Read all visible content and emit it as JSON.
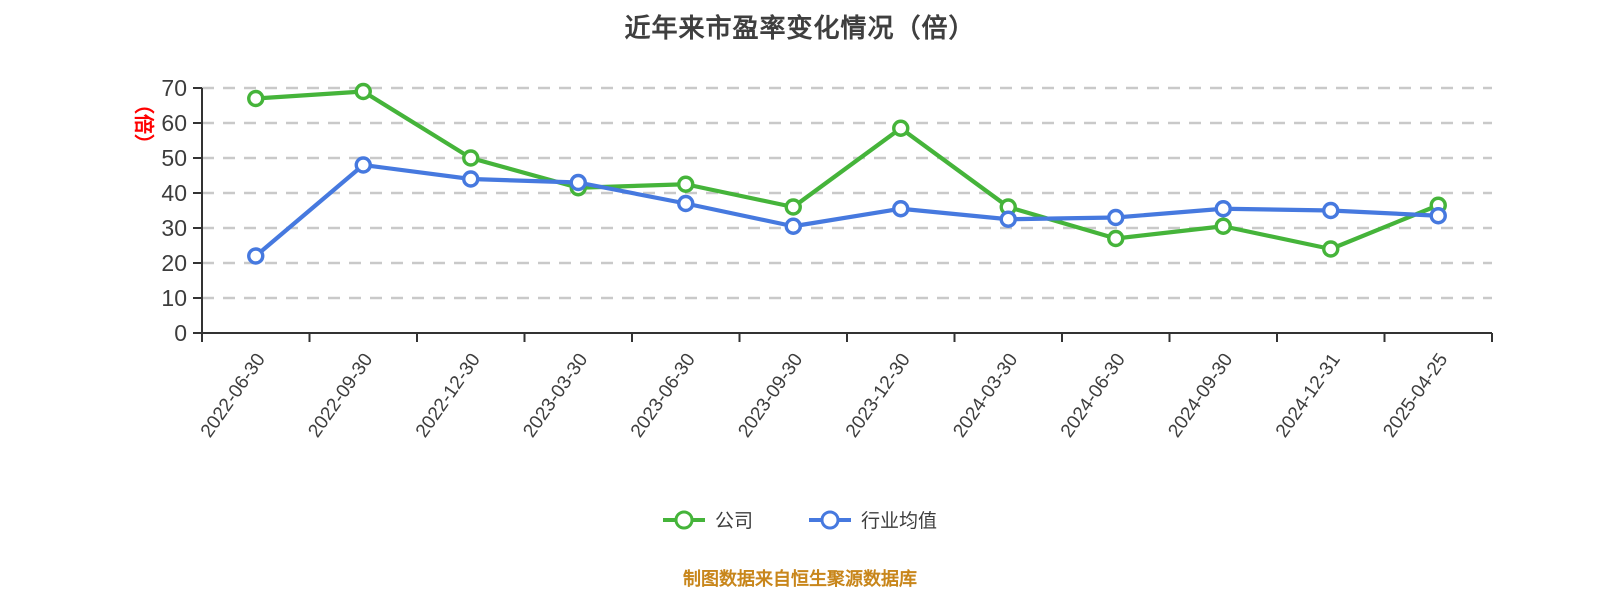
{
  "header": {
    "title": "近年来市盈率变化情况（倍）"
  },
  "chart_data": {
    "type": "line",
    "title": "近年来市盈率变化情况（倍）",
    "categories": [
      "2022-06-30",
      "2022-09-30",
      "2022-12-30",
      "2023-03-30",
      "2023-06-30",
      "2023-09-30",
      "2023-12-30",
      "2024-03-30",
      "2024-06-30",
      "2024-09-30",
      "2024-12-31",
      "2025-04-25"
    ],
    "series": [
      {
        "name": "公司",
        "color": "#45B43A",
        "values": [
          67,
          69,
          50,
          41.5,
          42.5,
          36,
          58.5,
          36,
          27,
          30.5,
          24,
          36.5
        ]
      },
      {
        "name": "行业均值",
        "color": "#4679DF",
        "values": [
          22,
          48,
          44,
          43,
          37,
          30.5,
          35.5,
          32.5,
          33,
          35.5,
          35,
          33.5
        ]
      }
    ],
    "xlabel": "",
    "ylabel": "（倍）",
    "ylim": [
      0,
      70
    ],
    "y_ticks": [
      0,
      10,
      20,
      30,
      40,
      50,
      60,
      70
    ],
    "grid": "horizontal-dashed",
    "legend_position": "bottom",
    "marker_style": "circle-white-fill",
    "x_label_rotation_deg": -55,
    "colors": {
      "ylabel_unit": "#FF0000",
      "axis_line": "#333333",
      "tick_text": "#3d3d3d",
      "gridline": "#c9c9c9",
      "background": "#ffffff"
    }
  },
  "footer": {
    "source_text": "制图数据来自恒生聚源数据库",
    "color": "#C8861B"
  }
}
